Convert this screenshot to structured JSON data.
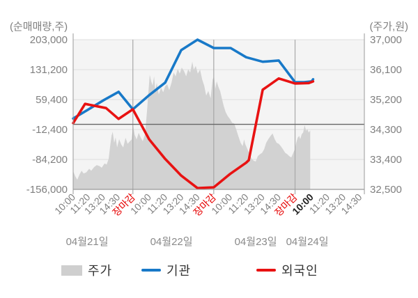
{
  "axis_titles": {
    "left": "(순매매량,주)",
    "right": "(주가,원)"
  },
  "legend": {
    "price_label": "주가",
    "institution_label": "기관",
    "foreign_label": "외국인"
  },
  "colors": {
    "institution": "#1879c8",
    "foreign": "#e81212",
    "price_fill": "#d2d2d2",
    "close_tick": "#e60000",
    "current_tick": "#222222",
    "axis_text": "#7f7f7f",
    "day_text": "#8a8a8a",
    "grid": "#dedede",
    "separator": "#a8a8a8",
    "axis_line": "#9a9a9a",
    "zero_line": "#666666",
    "plot_bg": "#f4f4f4"
  },
  "chart_data": {
    "type": "mixed",
    "left_axis": {
      "title": "(순매매량,주)",
      "max": 203000,
      "min": -156000,
      "tick_labels": [
        "203,000",
        "131,200",
        "59,400",
        "-12,400",
        "-84,200",
        "-156,000"
      ]
    },
    "right_axis": {
      "title": "(주가,원)",
      "max": 37000,
      "min": 32500,
      "tick_labels": [
        "37,000",
        "36,100",
        "35,200",
        "34,300",
        "33,400",
        "32,500"
      ]
    },
    "day_separators": [
      0.2051,
      0.4828,
      0.762
    ],
    "x_ticks": [
      {
        "t": 0.0,
        "label": "10:00",
        "style": "normal"
      },
      {
        "t": 0.0512,
        "label": "11:20",
        "style": "normal"
      },
      {
        "t": 0.1025,
        "label": "13:20",
        "style": "normal"
      },
      {
        "t": 0.1537,
        "label": "14:30",
        "style": "normal"
      },
      {
        "t": 0.2051,
        "label": "장마감",
        "style": "close"
      },
      {
        "t": 0.2606,
        "label": "10:00",
        "style": "normal"
      },
      {
        "t": 0.3162,
        "label": "11:20",
        "style": "normal"
      },
      {
        "t": 0.3717,
        "label": "13:20",
        "style": "normal"
      },
      {
        "t": 0.4273,
        "label": "14:30",
        "style": "normal"
      },
      {
        "t": 0.4828,
        "label": "장마감",
        "style": "close"
      },
      {
        "t": 0.5386,
        "label": "10:00",
        "style": "normal"
      },
      {
        "t": 0.5944,
        "label": "11:20",
        "style": "normal"
      },
      {
        "t": 0.6502,
        "label": "13:20",
        "style": "normal"
      },
      {
        "t": 0.7059,
        "label": "14:30",
        "style": "normal"
      },
      {
        "t": 0.762,
        "label": "장마감",
        "style": "close"
      },
      {
        "t": 0.8175,
        "label": "10:00",
        "style": "current"
      },
      {
        "t": 0.8731,
        "label": "11:20",
        "style": "normal"
      },
      {
        "t": 0.9286,
        "label": "13:20",
        "style": "normal"
      },
      {
        "t": 0.9842,
        "label": "14:30",
        "style": "normal"
      }
    ],
    "day_labels": [
      {
        "t": 0.048,
        "label": "04월21일"
      },
      {
        "t": 0.3375,
        "label": "04월22일"
      },
      {
        "t": 0.627,
        "label": "04월23일"
      },
      {
        "t": 0.804,
        "label": "04월24일"
      }
    ],
    "series": {
      "institution": {
        "name": "기관",
        "axis": "left",
        "points": [
          [
            0.0,
            14000
          ],
          [
            0.053,
            36000
          ],
          [
            0.105,
            58000
          ],
          [
            0.156,
            78000
          ],
          [
            0.205,
            36000
          ],
          [
            0.261,
            70000
          ],
          [
            0.316,
            100000
          ],
          [
            0.371,
            178000
          ],
          [
            0.427,
            203000
          ],
          [
            0.483,
            183000
          ],
          [
            0.541,
            183000
          ],
          [
            0.594,
            161000
          ],
          [
            0.651,
            150000
          ],
          [
            0.706,
            153000
          ],
          [
            0.762,
            101000
          ],
          [
            0.793,
            101000
          ],
          [
            0.819,
            103000
          ],
          [
            0.824,
            108000
          ]
        ]
      },
      "foreign": {
        "name": "외국인",
        "axis": "left",
        "points": [
          [
            0.0,
            3000
          ],
          [
            0.041,
            49000
          ],
          [
            0.084,
            43000
          ],
          [
            0.113,
            39000
          ],
          [
            0.156,
            13000
          ],
          [
            0.205,
            36000
          ],
          [
            0.261,
            -36000
          ],
          [
            0.316,
            -83000
          ],
          [
            0.371,
            -123000
          ],
          [
            0.427,
            -153000
          ],
          [
            0.483,
            -151000
          ],
          [
            0.539,
            -119000
          ],
          [
            0.594,
            -92000
          ],
          [
            0.603,
            -86000
          ],
          [
            0.651,
            83000
          ],
          [
            0.706,
            110000
          ],
          [
            0.762,
            98000
          ],
          [
            0.809,
            99000
          ],
          [
            0.824,
            103000
          ]
        ]
      },
      "price_area": {
        "name": "주가",
        "axis": "right",
        "points": [
          [
            0.0,
            33050
          ],
          [
            0.007,
            32900
          ],
          [
            0.014,
            32790
          ],
          [
            0.022,
            32950
          ],
          [
            0.029,
            33060
          ],
          [
            0.036,
            32980
          ],
          [
            0.045,
            33010
          ],
          [
            0.055,
            33120
          ],
          [
            0.062,
            33060
          ],
          [
            0.072,
            33170
          ],
          [
            0.081,
            33230
          ],
          [
            0.091,
            33200
          ],
          [
            0.098,
            33150
          ],
          [
            0.108,
            33280
          ],
          [
            0.115,
            33250
          ],
          [
            0.122,
            33420
          ],
          [
            0.127,
            33800
          ],
          [
            0.132,
            34120
          ],
          [
            0.136,
            34230
          ],
          [
            0.141,
            33900
          ],
          [
            0.146,
            34060
          ],
          [
            0.151,
            33760
          ],
          [
            0.158,
            34010
          ],
          [
            0.165,
            33850
          ],
          [
            0.172,
            33760
          ],
          [
            0.18,
            34050
          ],
          [
            0.187,
            33870
          ],
          [
            0.194,
            33940
          ],
          [
            0.201,
            34000
          ],
          [
            0.206,
            34420
          ],
          [
            0.211,
            34150
          ],
          [
            0.218,
            34000
          ],
          [
            0.225,
            34200
          ],
          [
            0.232,
            34060
          ],
          [
            0.239,
            33950
          ],
          [
            0.247,
            34160
          ],
          [
            0.254,
            34900
          ],
          [
            0.259,
            35500
          ],
          [
            0.263,
            35950
          ],
          [
            0.268,
            35750
          ],
          [
            0.273,
            35620
          ],
          [
            0.278,
            35900
          ],
          [
            0.282,
            35460
          ],
          [
            0.287,
            35700
          ],
          [
            0.294,
            35360
          ],
          [
            0.302,
            35560
          ],
          [
            0.309,
            35420
          ],
          [
            0.316,
            35600
          ],
          [
            0.323,
            35660
          ],
          [
            0.33,
            35480
          ],
          [
            0.338,
            35720
          ],
          [
            0.345,
            36010
          ],
          [
            0.352,
            35900
          ],
          [
            0.359,
            36120
          ],
          [
            0.366,
            35980
          ],
          [
            0.373,
            36160
          ],
          [
            0.381,
            36050
          ],
          [
            0.388,
            35900
          ],
          [
            0.395,
            36110
          ],
          [
            0.402,
            36010
          ],
          [
            0.409,
            36340
          ],
          [
            0.414,
            36100
          ],
          [
            0.421,
            36210
          ],
          [
            0.428,
            35980
          ],
          [
            0.436,
            36100
          ],
          [
            0.443,
            35800
          ],
          [
            0.45,
            35620
          ],
          [
            0.457,
            35320
          ],
          [
            0.464,
            35460
          ],
          [
            0.472,
            35240
          ],
          [
            0.479,
            35800
          ],
          [
            0.484,
            35900
          ],
          [
            0.488,
            35520
          ],
          [
            0.493,
            35750
          ],
          [
            0.498,
            35600
          ],
          [
            0.505,
            35450
          ],
          [
            0.51,
            35260
          ],
          [
            0.517,
            35010
          ],
          [
            0.524,
            34820
          ],
          [
            0.531,
            34700
          ],
          [
            0.539,
            34610
          ],
          [
            0.546,
            34500
          ],
          [
            0.553,
            34480
          ],
          [
            0.56,
            34300
          ],
          [
            0.567,
            34110
          ],
          [
            0.575,
            33900
          ],
          [
            0.582,
            33800
          ],
          [
            0.587,
            34000
          ],
          [
            0.591,
            33860
          ],
          [
            0.599,
            33700
          ],
          [
            0.606,
            33560
          ],
          [
            0.613,
            33420
          ],
          [
            0.62,
            33360
          ],
          [
            0.627,
            33340
          ],
          [
            0.634,
            33500
          ],
          [
            0.642,
            33560
          ],
          [
            0.649,
            33600
          ],
          [
            0.656,
            33710
          ],
          [
            0.663,
            33900
          ],
          [
            0.67,
            34010
          ],
          [
            0.678,
            34110
          ],
          [
            0.685,
            34180
          ],
          [
            0.692,
            34010
          ],
          [
            0.699,
            33900
          ],
          [
            0.706,
            33870
          ],
          [
            0.713,
            33800
          ],
          [
            0.721,
            33700
          ],
          [
            0.728,
            33600
          ],
          [
            0.735,
            33560
          ],
          [
            0.742,
            33500
          ],
          [
            0.749,
            33460
          ],
          [
            0.757,
            33620
          ],
          [
            0.761,
            33700
          ],
          [
            0.766,
            33900
          ],
          [
            0.771,
            34050
          ],
          [
            0.776,
            34110
          ],
          [
            0.78,
            34010
          ],
          [
            0.785,
            34160
          ],
          [
            0.79,
            34210
          ],
          [
            0.795,
            34430
          ],
          [
            0.8,
            34260
          ],
          [
            0.804,
            34310
          ],
          [
            0.809,
            34210
          ],
          [
            0.814,
            34270
          ]
        ]
      }
    }
  }
}
